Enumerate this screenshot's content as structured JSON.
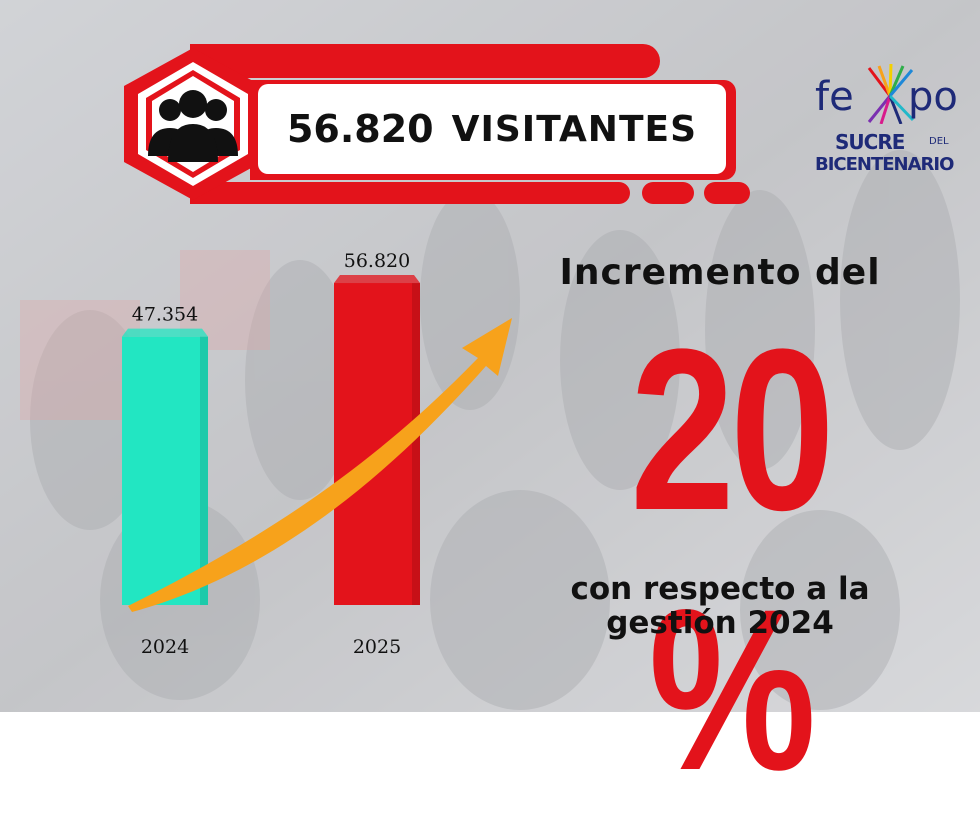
{
  "headline": {
    "number": "56.820",
    "word": "VISITANTES",
    "icon": "people-group-icon"
  },
  "logo": {
    "fe": "fe",
    "po": "po",
    "sucre": "SUCRE",
    "del": "DEL",
    "bicentenario": "BICENTENARIO"
  },
  "chart_data": {
    "type": "bar",
    "categories": [
      "2024",
      "2025"
    ],
    "values": [
      47354,
      56820
    ],
    "value_labels": [
      "47.354",
      "56.820"
    ],
    "colors": [
      "#22e6c2",
      "#e3131b"
    ],
    "ylim": [
      0,
      60000
    ]
  },
  "increase": {
    "label_top": "Incremento del",
    "percent": "20 %",
    "label_bottom_1": "con respecto a la",
    "label_bottom_2": "gestión 2024"
  },
  "colors": {
    "accent_red": "#e3131b",
    "arrow_orange": "#f7a21b",
    "teal": "#22e6c2",
    "logo_blue": "#1e2a78"
  }
}
